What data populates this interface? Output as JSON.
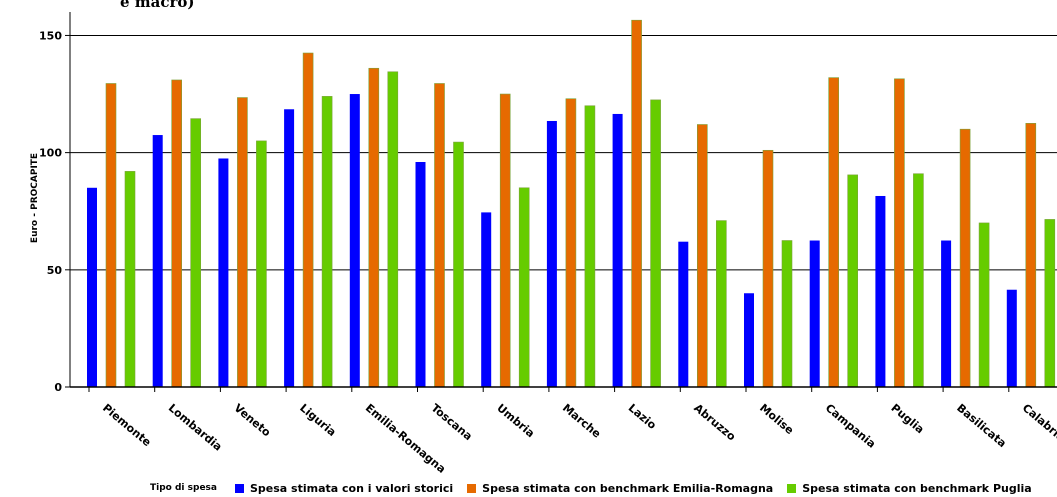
{
  "header": {
    "title_partial": "e macro)"
  },
  "chart_data": {
    "type": "bar",
    "ylabel": "Euro - PROCAPITE",
    "ylim": [
      0,
      160
    ],
    "yticks": [
      0,
      50,
      100,
      150
    ],
    "grid": true,
    "legend_position": "bottom",
    "legend_title": "Tipo di spesa",
    "categories": [
      "Piemonte",
      "Lombardia",
      "Veneto",
      "Liguria",
      "Emilia-Romagna",
      "Toscana",
      "Umbria",
      "Marche",
      "Lazio",
      "Abruzzo",
      "Molise",
      "Campania",
      "Puglia",
      "Basilicata",
      "Calabria"
    ],
    "series": [
      {
        "name": "Spesa stimata con i valori storici",
        "color": "#0000ff",
        "values": [
          85,
          107.5,
          97.5,
          118.5,
          125,
          96,
          74.5,
          113.5,
          116.5,
          62,
          40,
          62.5,
          81.5,
          62.5,
          41.5
        ]
      },
      {
        "name": "Spesa stimata con benchmark Emilia-Romagna",
        "color": "#e66a00",
        "values": [
          129.5,
          131,
          123.5,
          142.5,
          136,
          129.5,
          125,
          123,
          156.5,
          112,
          101,
          132,
          131.5,
          110,
          112.5
        ]
      },
      {
        "name": "Spesa stimata con benchmark Puglia",
        "color": "#66cc00",
        "values": [
          92,
          114.5,
          105,
          124,
          134.5,
          104.5,
          85,
          120,
          122.5,
          71,
          62.5,
          90.5,
          91,
          70,
          71.5
        ]
      }
    ]
  }
}
